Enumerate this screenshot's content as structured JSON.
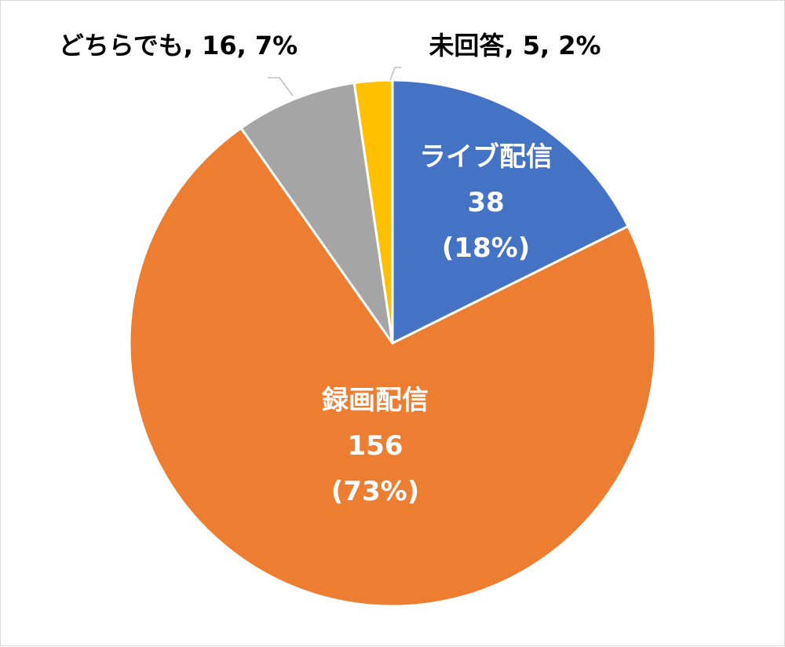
{
  "chart_data": {
    "type": "pie",
    "title": "",
    "slices": [
      {
        "category": "ライブ配信",
        "value": 38,
        "percent": "18%",
        "color": "#4472C4",
        "label_lines": [
          "ライブ配信",
          "38",
          "(18%)"
        ],
        "label_color": "#ffffff",
        "label_placement": "inside"
      },
      {
        "category": "録画配信",
        "value": 156,
        "percent": "73%",
        "color": "#ED7D31",
        "label_lines": [
          "録画配信",
          "156",
          "(73%)"
        ],
        "label_color": "#ffffff",
        "label_placement": "inside"
      },
      {
        "category": "どちらでも",
        "value": 16,
        "percent": "7%",
        "color": "#A5A5A5",
        "label_lines": [
          "どちらでも, 16, 7%"
        ],
        "label_color": "#000000",
        "label_placement": "outside-callout"
      },
      {
        "category": "未回答",
        "value": 5,
        "percent": "2%",
        "color": "#FFC000",
        "label_lines": [
          "未回答, 5, 2%"
        ],
        "label_color": "#000000",
        "label_placement": "outside-callout"
      }
    ],
    "start_angle_deg": 0,
    "direction": "clockwise",
    "legend": "none"
  }
}
